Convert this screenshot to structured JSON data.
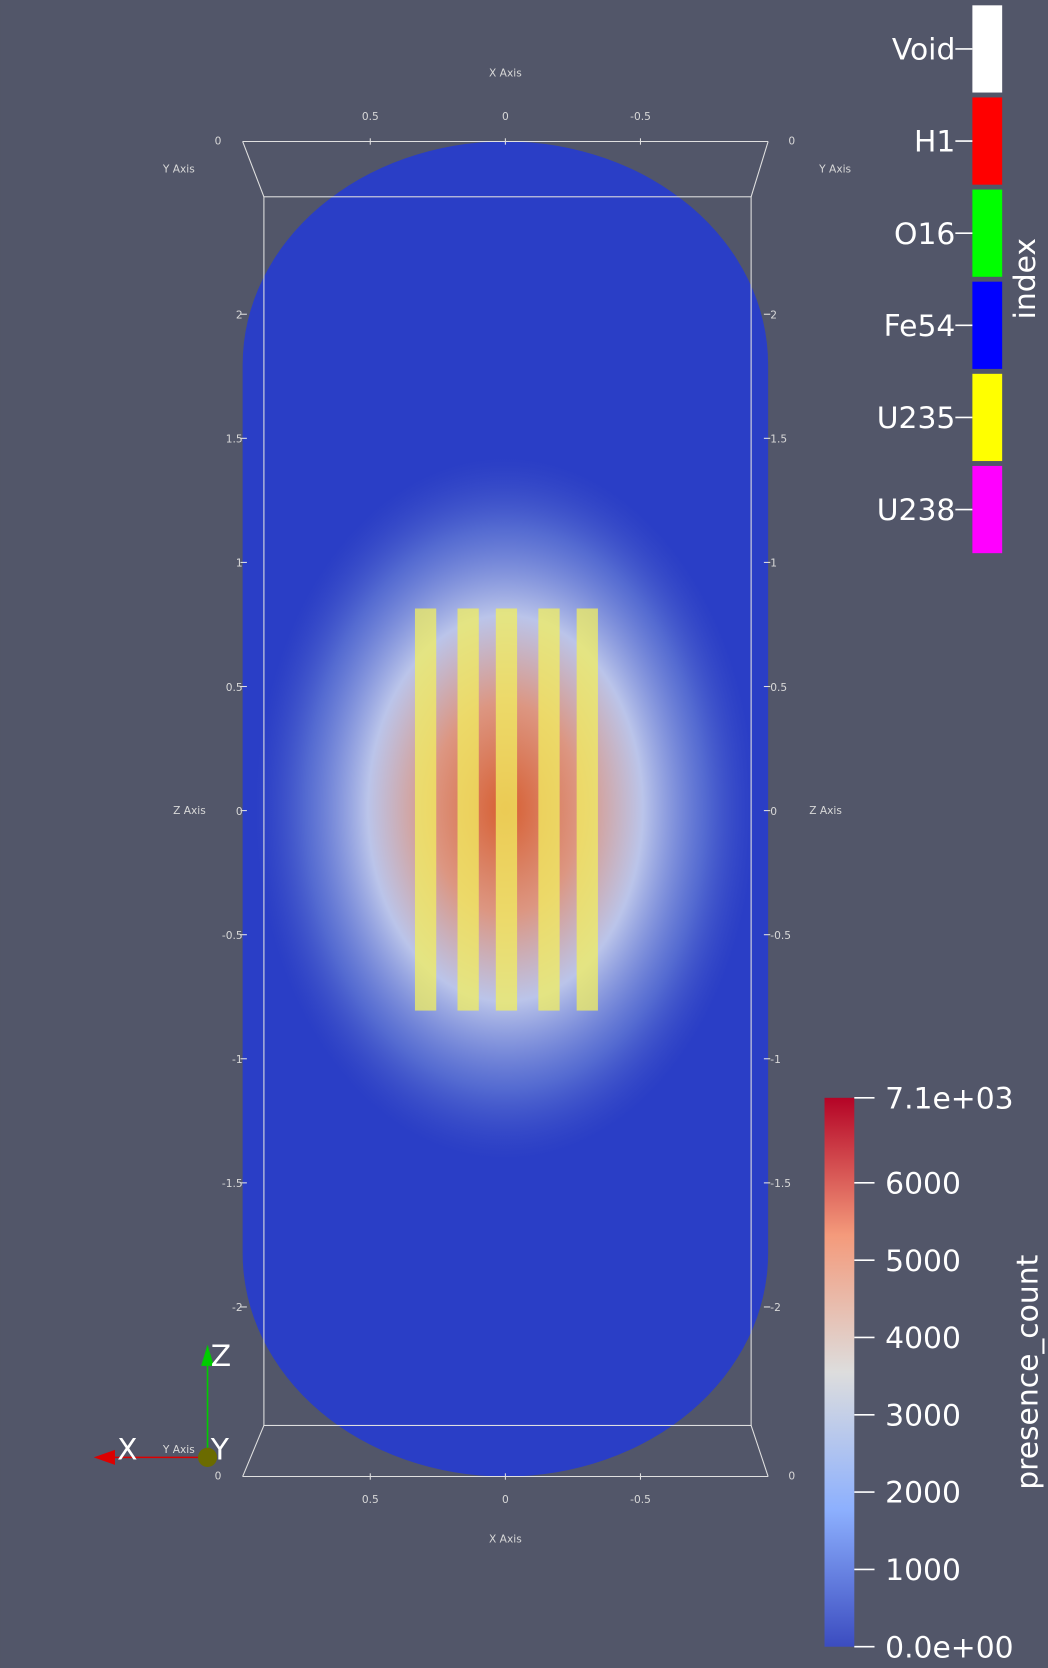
{
  "index_legend": {
    "title": "index",
    "entries": [
      {
        "label": "Void",
        "color": "#ffffff"
      },
      {
        "label": "H1",
        "color": "#ff0000"
      },
      {
        "label": "O16",
        "color": "#00ff00"
      },
      {
        "label": "Fe54",
        "color": "#0000ff"
      },
      {
        "label": "U235",
        "color": "#ffff00"
      },
      {
        "label": "U238",
        "color": "#ff00ff"
      }
    ]
  },
  "colorbar": {
    "title": "presence_count",
    "range": [
      0,
      7100
    ],
    "ticks": [
      {
        "value": 7100,
        "label": "7.1e+03"
      },
      6000,
      5000,
      4000,
      3000,
      2000,
      1000,
      {
        "value": 0,
        "label": "0.0e+00"
      }
    ]
  },
  "axes": {
    "x_label": "X Axis",
    "y_label": "Y Axis",
    "z_label": "Z Axis",
    "x_ticks": [
      0.5,
      0,
      -0.5
    ],
    "y_ticks": [
      0
    ],
    "z_ticks": [
      2,
      1.5,
      1,
      0.5,
      0,
      -0.5,
      -1,
      -1.5,
      -2
    ]
  },
  "orientation": {
    "x": "X",
    "y": "Y",
    "z": "Z"
  }
}
